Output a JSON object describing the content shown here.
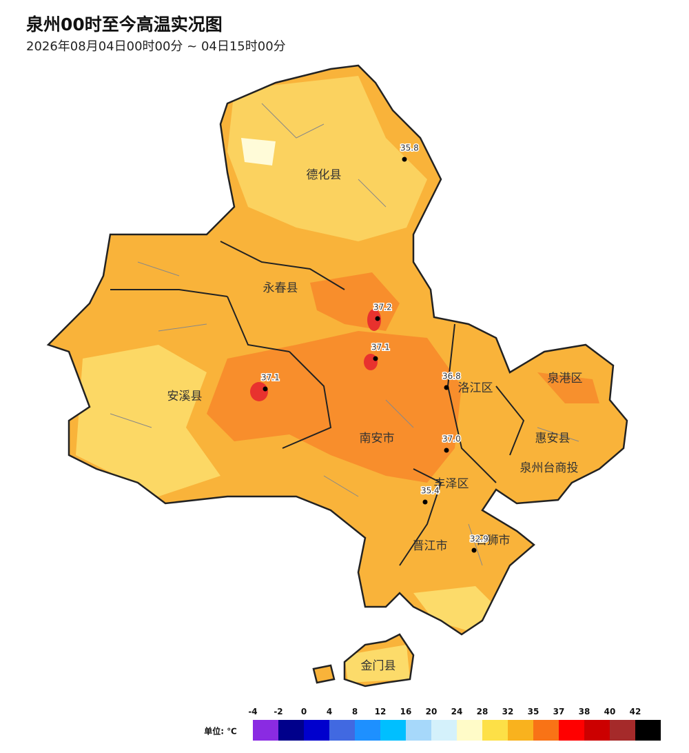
{
  "header": {
    "title": "泉州00时至今高温实况图",
    "subtitle": "2026年08月04日00时00分 ~ 04日15时00分"
  },
  "map": {
    "regions": [
      "德化县",
      "永春县",
      "安溪县",
      "南安市",
      "洛江区",
      "泉港区",
      "惠安县",
      "泉州台商投",
      "丰泽区",
      "晋江市",
      "石狮市",
      "金门县"
    ],
    "stations": [
      "35.8",
      "37.2",
      "37.1",
      "37.1",
      "36.8",
      "37.0",
      "35.4",
      "32.9"
    ]
  },
  "legend": {
    "unit_label": "单位: ℃",
    "ticks": [
      -4,
      -2,
      0,
      4,
      8,
      12,
      16,
      20,
      24,
      28,
      32,
      35,
      37,
      38,
      40,
      42
    ],
    "colors": [
      "#8a2be2",
      "#00008b",
      "#0000cd",
      "#4169e1",
      "#1e90ff",
      "#00bfff",
      "#a6d8fa",
      "#d4f1fb",
      "#fffbc8",
      "#fde047",
      "#f9b21e",
      "#f97316",
      "#ff0000",
      "#cc0000",
      "#a52a2a",
      "#000000"
    ]
  }
}
